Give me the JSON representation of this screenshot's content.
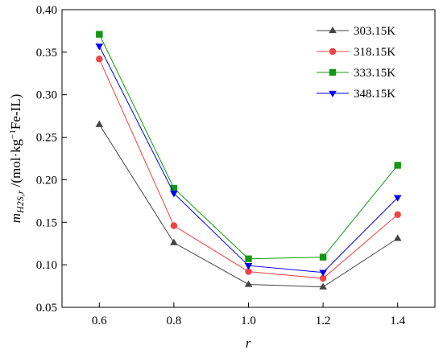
{
  "chart_data": {
    "type": "line",
    "x": [
      0.6,
      0.8,
      1.0,
      1.2,
      1.4
    ],
    "xlim": [
      0.5,
      1.5
    ],
    "ylim": [
      0.05,
      0.4
    ],
    "xticks": [
      "0.6",
      "0.8",
      "1.0",
      "1.2",
      "1.4"
    ],
    "yticks": [
      "0.05",
      "0.10",
      "0.15",
      "0.20",
      "0.25",
      "0.30",
      "0.35",
      "0.40"
    ],
    "xlabel": "r",
    "ylabel": {
      "prefix": "m",
      "subscript": "H2S,r",
      "unit_open": " /(mol·kg",
      "unit_sup": "−1",
      "unit_close": "Fe-IL)"
    },
    "grid": false,
    "legend_position": "top-right",
    "series": [
      {
        "name": "303.15K",
        "color": "#444444",
        "marker": "triangle-up",
        "values": [
          0.265,
          0.126,
          0.077,
          0.074,
          0.131
        ]
      },
      {
        "name": "318.15K",
        "color": "#ee4444",
        "marker": "circle",
        "values": [
          0.342,
          0.146,
          0.092,
          0.084,
          0.159
        ]
      },
      {
        "name": "333.15K",
        "color": "#119911",
        "marker": "square",
        "values": [
          0.371,
          0.19,
          0.107,
          0.109,
          0.217
        ]
      },
      {
        "name": "348.15K",
        "color": "#0000ee",
        "marker": "triangle-down",
        "values": [
          0.357,
          0.184,
          0.099,
          0.091,
          0.179
        ]
      }
    ]
  }
}
